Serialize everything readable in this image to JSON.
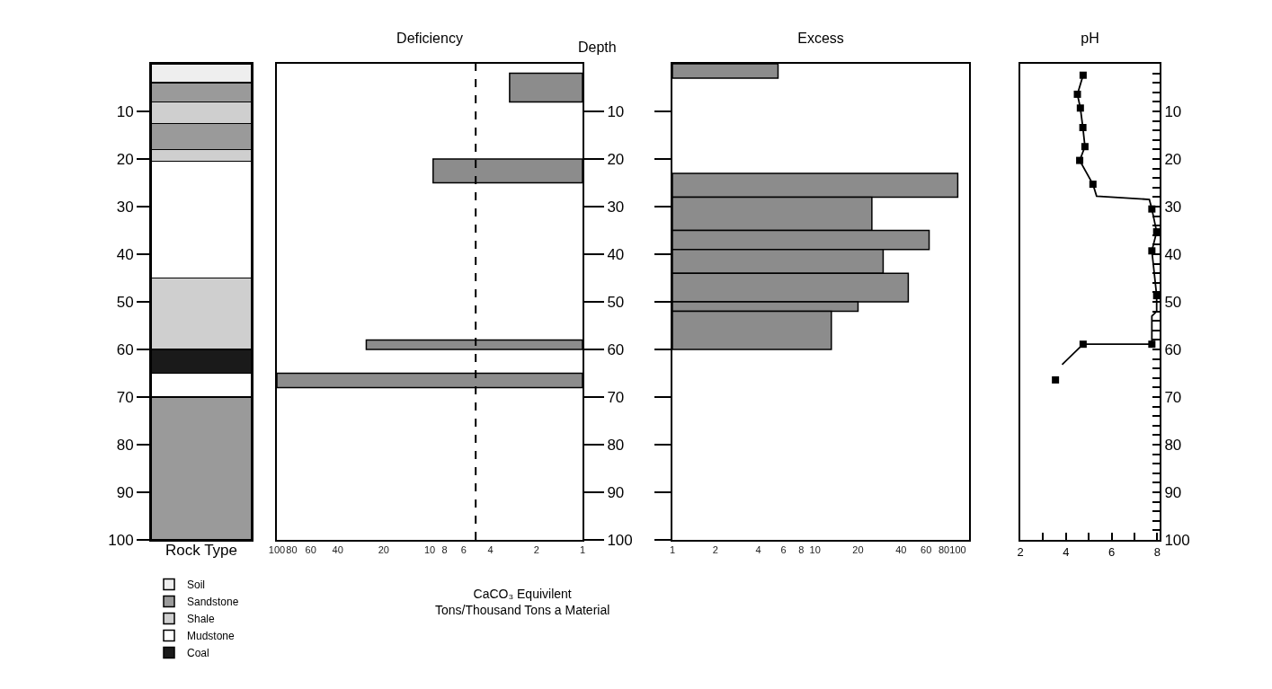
{
  "chart_data": [
    {
      "type": "bar",
      "stacked": true,
      "categories": [
        null
      ],
      "xlabel": "Rock Type",
      "ylim": [
        100,
        0
      ],
      "yticks": [
        10,
        20,
        30,
        40,
        50,
        60,
        70,
        80,
        90,
        100
      ],
      "tick_labels": "y",
      "legend": "bottom",
      "series": [
        {
          "name": "Soil",
          "color": "#eeeeee",
          "values": [
            4
          ]
        },
        {
          "name": "Sandstone",
          "color": "#9a9a9a",
          "values": [
            4
          ]
        },
        {
          "name": "Shale",
          "color": "#cfcfcf",
          "values": [
            4.5
          ]
        },
        {
          "color": "#9a9a9a",
          "values": [
            5.5
          ]
        },
        {
          "color": "#cfcfcf",
          "values": [
            2.5
          ]
        },
        {
          "name": "Mudstone",
          "color": "#ffffff",
          "values": [
            24.5
          ]
        },
        {
          "color": "#cfcfcf",
          "values": [
            15
          ]
        },
        {
          "name": "Coal",
          "color": "#1a1a1a",
          "values": [
            5
          ]
        },
        {
          "color": "#ffffff",
          "values": [
            5
          ]
        },
        {
          "color": "#9a9a9a",
          "values": [
            30
          ]
        }
      ]
    },
    {
      "type": "histogram",
      "orientation": "horizontal",
      "title": "Deficiency",
      "ylabel": "Depth",
      "bins": [
        2,
        8,
        20,
        25,
        58,
        60,
        65,
        68
      ],
      "values": [
        3,
        null,
        9.5,
        null,
        26,
        null,
        100
      ],
      "color": "#8c8c8c",
      "log": "x",
      "xlim": [
        100,
        1
      ],
      "xticks": [
        100,
        80,
        60,
        40,
        20,
        10,
        8,
        6,
        4,
        2,
        1
      ],
      "ylim": [
        100,
        0
      ],
      "yticks": [
        10,
        20,
        30,
        40,
        50,
        60,
        70,
        80,
        90,
        100
      ],
      "ref_lines": [
        {
          "axis": "x",
          "value": 5,
          "line_style": "dashed",
          "color": "#000000"
        }
      ],
      "annotations": [
        "CaCO₃ Equivilent\nTons/Thousand Tons a Material"
      ]
    },
    {
      "type": "histogram",
      "orientation": "horizontal",
      "title": "Excess",
      "bins": [
        0,
        3,
        23,
        28,
        35,
        39,
        44,
        50,
        52,
        60
      ],
      "values": [
        5.5,
        null,
        100,
        25,
        63,
        30,
        45,
        20,
        13
      ],
      "color": "#8c8c8c",
      "log": "x",
      "xlim": [
        1,
        120
      ],
      "xticks": [
        1,
        2,
        4,
        6,
        8,
        10,
        20,
        40,
        60,
        80,
        100
      ],
      "ylim": [
        100,
        0
      ],
      "yticks": [
        10,
        20,
        30,
        40,
        50,
        60,
        70,
        80,
        90,
        100
      ],
      "tick_labels": "x"
    },
    {
      "type": "line",
      "title": "pH",
      "marker": "square",
      "xlim": [
        2,
        8.1
      ],
      "xticks": [
        2,
        {
          "value": 3,
          "label": null
        },
        4,
        {
          "value": 5,
          "label": null
        },
        6,
        {
          "value": 7,
          "label": null
        },
        8
      ],
      "ylim": [
        100,
        0
      ],
      "yticks": [
        {
          "value": 2,
          "label": null
        },
        {
          "value": 4,
          "label": null
        },
        {
          "value": 6,
          "label": null
        },
        {
          "value": 8,
          "label": null
        },
        10,
        {
          "value": 12,
          "label": null
        },
        {
          "value": 14,
          "label": null
        },
        {
          "value": 16,
          "label": null
        },
        {
          "value": 18,
          "label": null
        },
        20,
        {
          "value": 22,
          "label": null
        },
        {
          "value": 24,
          "label": null
        },
        {
          "value": 26,
          "label": null
        },
        {
          "value": 28,
          "label": null
        },
        30,
        {
          "value": 32,
          "label": null
        },
        {
          "value": 34,
          "label": null
        },
        {
          "value": 36,
          "label": null
        },
        {
          "value": 38,
          "label": null
        },
        40,
        {
          "value": 42,
          "label": null
        },
        {
          "value": 44,
          "label": null
        },
        {
          "value": 46,
          "label": null
        },
        {
          "value": 48,
          "label": null
        },
        50,
        {
          "value": 52,
          "label": null
        },
        {
          "value": 54,
          "label": null
        },
        {
          "value": 56,
          "label": null
        },
        {
          "value": 58,
          "label": null
        },
        60,
        {
          "value": 62,
          "label": null
        },
        {
          "value": 64,
          "label": null
        },
        {
          "value": 66,
          "label": null
        },
        {
          "value": 68,
          "label": null
        },
        70,
        {
          "value": 72,
          "label": null
        },
        {
          "value": 74,
          "label": null
        },
        {
          "value": 76,
          "label": null
        },
        {
          "value": 78,
          "label": null
        },
        80,
        {
          "value": 82,
          "label": null
        },
        {
          "value": 84,
          "label": null
        },
        {
          "value": 86,
          "label": null
        },
        {
          "value": 88,
          "label": null
        },
        90,
        {
          "value": 92,
          "label": null
        },
        {
          "value": 94,
          "label": null
        },
        {
          "value": 96,
          "label": null
        },
        {
          "value": 98,
          "label": null
        },
        100
      ],
      "series": [
        {
          "color": "#000000",
          "marker": "none",
          "x": [
            4.75,
            4.5,
            4.63,
            4.74,
            4.83,
            4.6,
            5.18,
            5.34,
            7.65,
            7.76,
            7.97,
            7.76,
            7.97,
            7.97,
            7.76,
            7.76,
            4.75,
            3.83
          ],
          "values": [
            2.4,
            6.4,
            9.3,
            13.4,
            17.4,
            20.3,
            25.3,
            27.8,
            28.5,
            30.5,
            35.3,
            39.3,
            48.7,
            52,
            53,
            58.9,
            58.9,
            63.2
          ]
        },
        {
          "type": "scatter",
          "color": "#000000",
          "x": [
            4.75,
            4.5,
            4.63,
            4.74,
            4.83,
            4.6,
            5.18,
            7.76,
            7.97,
            7.76,
            7.97,
            7.76,
            4.75,
            3.54
          ],
          "values": [
            2.4,
            6.4,
            9.3,
            13.4,
            17.4,
            20.3,
            25.3,
            30.5,
            35.3,
            39.3,
            48.7,
            58.9,
            58.9,
            66.4
          ]
        }
      ]
    }
  ]
}
